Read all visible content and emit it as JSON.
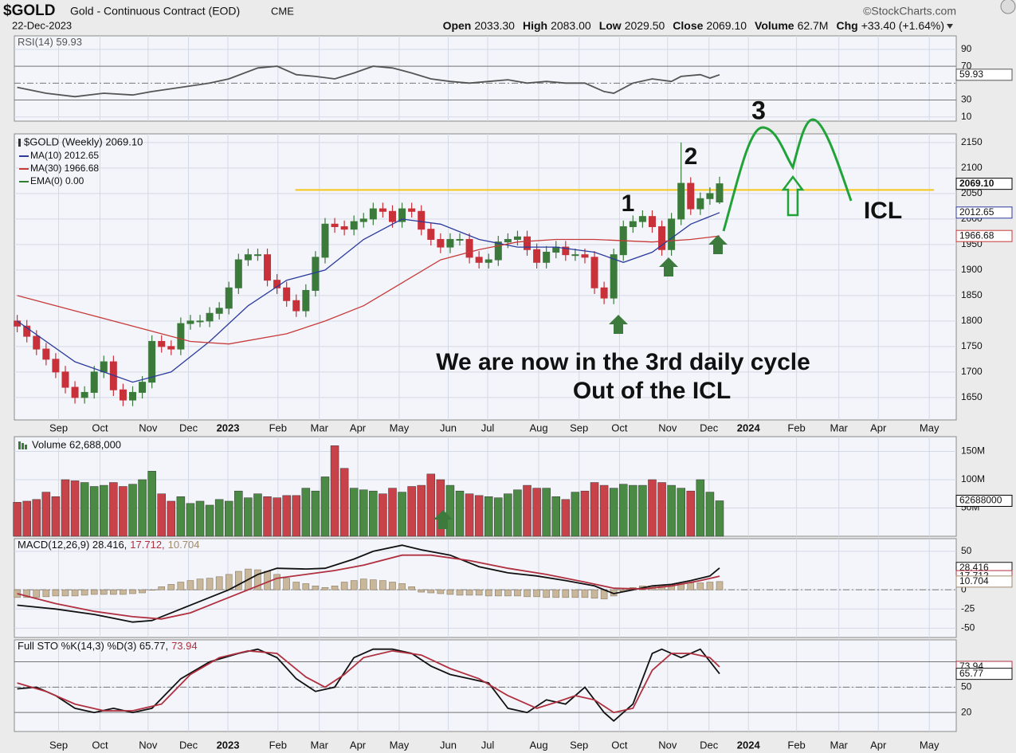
{
  "header": {
    "symbol": "$GOLD",
    "name": "Gold - Continuous Contract (EOD)",
    "exchange": "CME",
    "source": "©StockCharts.com",
    "date": "22-Dec-2023",
    "quote": [
      {
        "label": "Open",
        "value": "2033.30"
      },
      {
        "label": "High",
        "value": "2083.00"
      },
      {
        "label": "Low",
        "value": "2029.50"
      },
      {
        "label": "Close",
        "value": "2069.10"
      },
      {
        "label": "Volume",
        "value": "62.7M"
      },
      {
        "label": "Chg",
        "value": "+33.40 (+1.64%)"
      }
    ]
  },
  "chart_data": [
    {
      "type": "line",
      "ylim": [
        5,
        106
      ],
      "yticks": [
        10,
        30,
        70,
        90
      ],
      "ref_lines": [
        30,
        70
      ],
      "mid_line": 50,
      "series": [
        {
          "name": "RSI(14) 59.93",
          "color": "#555555",
          "x": [
            0,
            3,
            6,
            9,
            12,
            14,
            17,
            20,
            22,
            25,
            27,
            29,
            31,
            33,
            35,
            37,
            39,
            41,
            43,
            45,
            47,
            49,
            51,
            53,
            55,
            57,
            59,
            61,
            62,
            64,
            66,
            68,
            69,
            71,
            72,
            73
          ],
          "values": [
            45,
            38,
            34,
            38,
            36,
            40,
            45,
            50,
            55,
            68,
            70,
            60,
            58,
            55,
            62,
            70,
            68,
            62,
            55,
            52,
            50,
            52,
            54,
            50,
            52,
            50,
            50,
            40,
            38,
            50,
            55,
            52,
            58,
            60,
            56,
            59.93
          ]
        }
      ],
      "last_labels": [
        {
          "value": 59.93,
          "label": "59.93",
          "color": "#555555"
        }
      ]
    },
    {
      "type": "candlestick",
      "legend": "$GOLD (Weekly) 2069.10",
      "xlim": [
        -0.3,
        97.6
      ],
      "xticks": [
        {
          "value": 4.3,
          "label": "Sep"
        },
        {
          "value": 8.6,
          "label": "Oct"
        },
        {
          "value": 13.6,
          "label": "Nov"
        },
        {
          "value": 17.8,
          "label": "Dec"
        },
        {
          "value": 21.9,
          "label": "2023"
        },
        {
          "value": 27.1,
          "label": "Feb"
        },
        {
          "value": 31.4,
          "label": "Mar"
        },
        {
          "value": 35.4,
          "label": "Apr"
        },
        {
          "value": 39.7,
          "label": "May"
        },
        {
          "value": 44.8,
          "label": "Jun"
        },
        {
          "value": 48.9,
          "label": "Jul"
        },
        {
          "value": 54.2,
          "label": "Aug"
        },
        {
          "value": 58.4,
          "label": "Sep"
        },
        {
          "value": 62.6,
          "label": "Oct"
        },
        {
          "value": 67.6,
          "label": "Nov"
        },
        {
          "value": 71.9,
          "label": "Dec"
        },
        {
          "value": 76.0,
          "label": "2024"
        },
        {
          "value": 81.0,
          "label": "Feb"
        },
        {
          "value": 85.4,
          "label": "Mar"
        },
        {
          "value": 89.5,
          "label": "Apr"
        },
        {
          "value": 94.8,
          "label": "May"
        }
      ],
      "ylim": [
        1606,
        2167
      ],
      "yticks": [
        1650,
        1700,
        1750,
        1800,
        1850,
        1900,
        1950,
        2000,
        2050,
        2100,
        2150
      ],
      "up_color": "#3b7a3b",
      "down_color": "#c8303a",
      "open": [
        1800,
        1790,
        1770,
        1745,
        1725,
        1700,
        1670,
        1650,
        1660,
        1700,
        1720,
        1665,
        1645,
        1660,
        1680,
        1760,
        1750,
        1745,
        1795,
        1800,
        1800,
        1815,
        1825,
        1865,
        1920,
        1930,
        1930,
        1880,
        1865,
        1840,
        1820,
        1860,
        1925,
        1990,
        1985,
        1980,
        1995,
        2000,
        2020,
        2015,
        1995,
        2020,
        2015,
        1980,
        1960,
        1945,
        1960,
        1960,
        1925,
        1915,
        1920,
        1955,
        1960,
        1965,
        1940,
        1915,
        1935,
        1945,
        1930,
        1930,
        1925,
        1865,
        1845,
        1930,
        1985,
        1995,
        2005,
        1985,
        1940,
        2000,
        2070,
        2020,
        2040,
        2033.3
      ],
      "high": [
        1812,
        1802,
        1782,
        1757,
        1737,
        1712,
        1682,
        1672,
        1712,
        1732,
        1732,
        1677,
        1672,
        1692,
        1772,
        1772,
        1762,
        1807,
        1812,
        1812,
        1827,
        1837,
        1877,
        1932,
        1942,
        1942,
        1942,
        1892,
        1877,
        1852,
        1872,
        1937,
        2002,
        2002,
        1997,
        2007,
        2012,
        2032,
        2032,
        2027,
        2032,
        2032,
        2027,
        1992,
        1972,
        1972,
        1972,
        1972,
        1937,
        1932,
        1967,
        1972,
        1977,
        1977,
        1952,
        1947,
        1957,
        1957,
        1942,
        1942,
        1937,
        1877,
        1942,
        1997,
        2007,
        2017,
        2017,
        1997,
        2012,
        2150,
        2082,
        2052,
        2062,
        2083
      ],
      "low": [
        1778,
        1758,
        1733,
        1713,
        1688,
        1658,
        1638,
        1638,
        1648,
        1688,
        1653,
        1633,
        1633,
        1648,
        1668,
        1738,
        1733,
        1733,
        1783,
        1788,
        1788,
        1803,
        1813,
        1853,
        1908,
        1918,
        1868,
        1853,
        1828,
        1808,
        1808,
        1848,
        1913,
        1973,
        1968,
        1968,
        1983,
        1988,
        2003,
        1983,
        1983,
        2003,
        1968,
        1948,
        1933,
        1933,
        1948,
        1913,
        1903,
        1903,
        1908,
        1943,
        1948,
        1928,
        1903,
        1903,
        1923,
        1918,
        1918,
        1913,
        1853,
        1833,
        1833,
        1918,
        1973,
        1983,
        1973,
        1928,
        1928,
        1988,
        2008,
        2008,
        2028,
        2029.5
      ],
      "close": [
        1790,
        1770,
        1745,
        1725,
        1700,
        1670,
        1650,
        1660,
        1700,
        1720,
        1665,
        1645,
        1660,
        1680,
        1760,
        1750,
        1745,
        1795,
        1800,
        1800,
        1815,
        1825,
        1865,
        1920,
        1930,
        1930,
        1880,
        1865,
        1840,
        1820,
        1860,
        1925,
        1990,
        1985,
        1980,
        1995,
        2000,
        2020,
        2015,
        1995,
        2020,
        2015,
        1980,
        1960,
        1945,
        1960,
        1960,
        1925,
        1915,
        1920,
        1955,
        1960,
        1965,
        1940,
        1915,
        1935,
        1945,
        1930,
        1930,
        1925,
        1865,
        1845,
        1930,
        1985,
        1995,
        2005,
        1985,
        1940,
        2000,
        2070,
        2020,
        2040,
        2050,
        2069.1
      ],
      "series": [
        {
          "name": "MA(10) 2012.65",
          "color": "#2b3a9c",
          "x": [
            0,
            6,
            12,
            16,
            20,
            24,
            28,
            32,
            36,
            40,
            44,
            48,
            52,
            56,
            60,
            63,
            66,
            70,
            73
          ],
          "values": [
            1800,
            1720,
            1680,
            1700,
            1760,
            1830,
            1880,
            1900,
            1960,
            2000,
            1990,
            1960,
            1945,
            1945,
            1935,
            1915,
            1935,
            1990,
            2012.65
          ]
        },
        {
          "name": "MA(30) 1966.68",
          "color": "#c83a3a",
          "x": [
            0,
            6,
            12,
            18,
            22,
            28,
            32,
            36,
            40,
            44,
            48,
            52,
            56,
            60,
            66,
            70,
            73
          ],
          "values": [
            1850,
            1820,
            1790,
            1760,
            1755,
            1775,
            1800,
            1830,
            1875,
            1920,
            1940,
            1955,
            1960,
            1960,
            1955,
            1960,
            1966.68
          ]
        },
        {
          "name": "EMA(0) 0.00",
          "color": "#2e7d32"
        }
      ],
      "resistance": {
        "value": 2057,
        "x": [
          28.9,
          95.3
        ],
        "color": "#f5c518"
      },
      "last_labels": [
        {
          "value": 2069.1,
          "label": "2069.10",
          "color": "#000000"
        },
        {
          "value": 2012.65,
          "label": "2012.65",
          "color": "#2b3a9c"
        },
        {
          "value": 1966.68,
          "label": "1966.68",
          "color": "#c83a3a"
        }
      ],
      "annotations": [
        {
          "text": "We are now in the 3rd daily cycle",
          "color": "#e0262e"
        },
        {
          "text": "Out of the ICL",
          "color": "#e0262e"
        },
        {
          "text": "ICL",
          "color": "#e0262e"
        },
        {
          "text": "1",
          "color": "#8a3ae0"
        },
        {
          "text": "2",
          "color": "#8a3ae0"
        },
        {
          "text": "3",
          "color": "#9b4cb0"
        }
      ]
    },
    {
      "type": "bar",
      "name": "Volume 62,688,000",
      "ylim": [
        0,
        176
      ],
      "yticks": [
        {
          "value": 50,
          "label": "50M"
        },
        {
          "value": 100,
          "label": "100M"
        },
        {
          "value": 150,
          "label": "150M"
        }
      ],
      "up_color": "#4a8a45",
      "down_color": "#c8424a",
      "values": [
        60,
        62,
        65,
        78,
        70,
        100,
        98,
        95,
        88,
        90,
        95,
        88,
        92,
        100,
        115,
        75,
        62,
        70,
        58,
        62,
        55,
        65,
        62,
        80,
        68,
        75,
        70,
        68,
        72,
        72,
        85,
        80,
        105,
        160,
        120,
        85,
        82,
        80,
        75,
        85,
        78,
        88,
        90,
        110,
        100,
        90,
        80,
        75,
        72,
        70,
        68,
        75,
        82,
        90,
        85,
        85,
        70,
        65,
        78,
        80,
        95,
        90,
        85,
        92,
        90,
        90,
        100,
        95,
        90,
        85,
        80,
        100,
        78,
        62.688
      ],
      "last_labels": [
        {
          "value": 62.688,
          "label": "62688000",
          "color": "#000000"
        }
      ]
    },
    {
      "type": "line",
      "ylim": [
        -62,
        66.5
      ],
      "yticks": [
        -50,
        -25,
        0,
        50
      ],
      "mid_line": 0,
      "series": [
        {
          "name": "MACD(12,26,9) 28.416,",
          "color": "#111111",
          "x": [
            0,
            4,
            8,
            12,
            14,
            17,
            20,
            22,
            25,
            27,
            30,
            32,
            35,
            37,
            40,
            42,
            45,
            48,
            51,
            54,
            57,
            60,
            62,
            64,
            66,
            68,
            70,
            72,
            73
          ],
          "values": [
            -20,
            -25,
            -32,
            -42,
            -40,
            -25,
            -10,
            0,
            20,
            28,
            27,
            28,
            40,
            50,
            58,
            52,
            45,
            30,
            22,
            18,
            12,
            5,
            -5,
            0,
            5,
            7,
            12,
            18,
            28.416
          ]
        },
        {
          "name": "17.712,",
          "color": "#b03040",
          "x": [
            0,
            4,
            8,
            12,
            15,
            18,
            21,
            24,
            27,
            30,
            33,
            36,
            40,
            43,
            47,
            51,
            55,
            59,
            62,
            65,
            68,
            71,
            73
          ],
          "values": [
            -5,
            -18,
            -28,
            -35,
            -38,
            -30,
            -15,
            0,
            15,
            20,
            25,
            32,
            45,
            45,
            38,
            28,
            20,
            10,
            2,
            1,
            5,
            12,
            17.712
          ]
        }
      ],
      "histogram": {
        "name": "10.704",
        "color": "#c9b79c",
        "values": [
          -10,
          -10,
          -10,
          -9,
          -8,
          -8,
          -8,
          -7,
          -6,
          -6,
          -6,
          -6,
          -5,
          -4,
          0,
          4,
          7,
          10,
          12,
          14,
          15,
          17,
          20,
          24,
          27,
          26,
          24,
          20,
          15,
          10,
          8,
          5,
          3,
          5,
          10,
          12,
          14,
          13,
          12,
          10,
          8,
          4,
          -3,
          -4,
          -5,
          -6,
          -7,
          -7,
          -7,
          -8,
          -8,
          -8,
          -8,
          -9,
          -9,
          -10,
          -10,
          -10,
          -10,
          -10,
          -11,
          -12,
          -8,
          -2,
          3,
          5,
          5,
          6,
          7,
          8,
          9,
          9,
          10,
          10.704
        ]
      },
      "last_labels": [
        {
          "value": 28.416,
          "label": "28.416",
          "color": "#111111"
        },
        {
          "value": 17.712,
          "label": "17.712",
          "color": "#b03040"
        },
        {
          "value": 10.704,
          "label": "10.704",
          "color": "#a08a6a"
        }
      ]
    },
    {
      "type": "line",
      "ylim": [
        -2.5,
        106
      ],
      "yticks": [
        20,
        50
      ],
      "ref_lines": [
        20,
        80
      ],
      "mid_line": 50,
      "series": [
        {
          "name": "Full STO %K(14,3) %D(3) 65.77,",
          "color": "#111111",
          "x": [
            0,
            2,
            4,
            6,
            8,
            10,
            12,
            14,
            17,
            20,
            23,
            25,
            27,
            29,
            31,
            33,
            35,
            37,
            39,
            41,
            43,
            45,
            47,
            49,
            51,
            53,
            55,
            57,
            59,
            61,
            62,
            64,
            66,
            67,
            69,
            71,
            73
          ],
          "values": [
            48,
            50,
            40,
            25,
            20,
            25,
            20,
            25,
            60,
            80,
            90,
            95,
            85,
            60,
            45,
            50,
            85,
            95,
            95,
            90,
            75,
            65,
            60,
            55,
            25,
            20,
            35,
            30,
            50,
            20,
            10,
            30,
            90,
            95,
            85,
            95,
            65.77
          ]
        },
        {
          "name": "73.94",
          "color": "#b03040",
          "x": [
            0,
            3,
            6,
            9,
            12,
            15,
            18,
            21,
            24,
            27,
            30,
            32,
            34,
            36,
            39,
            42,
            45,
            48,
            51,
            54,
            56,
            58,
            60,
            62,
            64,
            66,
            68,
            70,
            72,
            73
          ],
          "values": [
            55,
            45,
            30,
            22,
            22,
            30,
            65,
            85,
            93,
            90,
            62,
            50,
            65,
            85,
            93,
            88,
            72,
            60,
            40,
            25,
            32,
            40,
            35,
            20,
            25,
            70,
            90,
            90,
            85,
            73.94
          ]
        }
      ],
      "last_labels": [
        {
          "value": 73.94,
          "label": "73.94",
          "color": "#b03040"
        },
        {
          "value": 65.77,
          "label": "65.77",
          "color": "#111111"
        }
      ]
    }
  ]
}
